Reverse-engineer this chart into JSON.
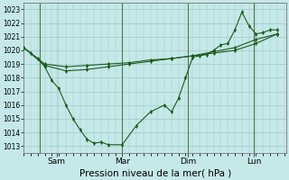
{
  "xlabel": "Pression niveau de la mer( hPa )",
  "background_color": "#c5e8e8",
  "line_color": "#1a5c1a",
  "marker_color": "#1a5c1a",
  "grid_color": "#a0c8c8",
  "vline_color": "#4a7a4a",
  "ylim": [
    1012.5,
    1023.5
  ],
  "yticks": [
    1013,
    1014,
    1015,
    1016,
    1017,
    1018,
    1019,
    1020,
    1021,
    1022,
    1023
  ],
  "xlim": [
    0.0,
    112.0
  ],
  "xtick_labels": [
    "Sam",
    "Mar",
    "Dim",
    "Lun"
  ],
  "xtick_positions": [
    14,
    42,
    70,
    98
  ],
  "vline_positions": [
    7,
    42,
    70,
    98
  ],
  "series1_x": [
    0,
    3,
    6,
    9,
    12,
    15,
    18,
    21,
    24,
    27,
    30,
    33,
    36,
    42,
    48,
    54,
    60,
    63,
    66,
    69,
    72,
    75,
    78,
    81,
    84,
    87,
    90,
    93,
    96,
    99,
    102,
    105,
    108
  ],
  "series1_y": [
    1020.2,
    1019.8,
    1019.4,
    1018.8,
    1017.8,
    1017.2,
    1016.0,
    1015.0,
    1014.2,
    1013.5,
    1013.2,
    1013.3,
    1013.1,
    1013.1,
    1014.5,
    1015.5,
    1016.0,
    1015.5,
    1016.5,
    1018.0,
    1019.5,
    1019.6,
    1019.7,
    1020.0,
    1020.4,
    1020.5,
    1021.5,
    1022.8,
    1021.8,
    1021.2,
    1021.3,
    1021.5,
    1021.5
  ],
  "series2_x": [
    0,
    9,
    18,
    27,
    36,
    45,
    54,
    63,
    72,
    81,
    90,
    99,
    108
  ],
  "series2_y": [
    1020.2,
    1019.0,
    1018.8,
    1018.9,
    1019.0,
    1019.1,
    1019.3,
    1019.4,
    1019.6,
    1019.8,
    1020.0,
    1020.5,
    1021.2
  ],
  "series3_x": [
    0,
    9,
    18,
    27,
    36,
    45,
    54,
    63,
    72,
    81,
    90,
    99,
    108
  ],
  "series3_y": [
    1020.2,
    1018.9,
    1018.5,
    1018.6,
    1018.8,
    1019.0,
    1019.2,
    1019.4,
    1019.6,
    1019.9,
    1020.2,
    1020.8,
    1021.2
  ]
}
